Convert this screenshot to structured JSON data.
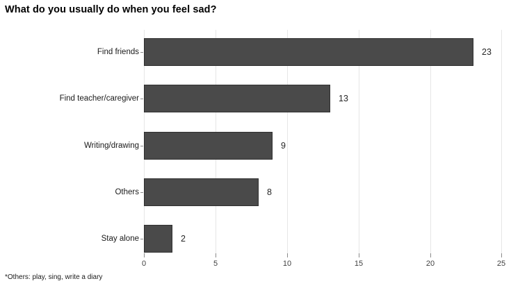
{
  "chart_data": {
    "type": "bar",
    "orientation": "horizontal",
    "title": "What do you usually do when you feel sad?",
    "categories": [
      "Find friends",
      "Find teacher/caregiver",
      "Writing/drawing",
      "Others",
      "Stay alone"
    ],
    "values": [
      23,
      13,
      9,
      8,
      2
    ],
    "value_labels": [
      "23",
      "13",
      "9",
      "8",
      "2"
    ],
    "x_ticks": [
      0,
      5,
      10,
      15,
      20,
      25
    ],
    "x_tick_labels": [
      "0",
      "5",
      "10",
      "15",
      "20",
      "25"
    ],
    "xlim": [
      0,
      25
    ],
    "grid": true,
    "legend": false,
    "footnote": "*Others: play, sing, write a diary",
    "colors": {
      "bar_fill": "#4a4a4a",
      "bar_border": "#2f2f2f",
      "gridline": "#e6e6e6",
      "tick": "#8a8a8a",
      "tick_label": "#3f3f3f",
      "category_label": "#1a1a1a",
      "value_label": "#262626",
      "title": "#000000",
      "background": "#ffffff"
    }
  }
}
